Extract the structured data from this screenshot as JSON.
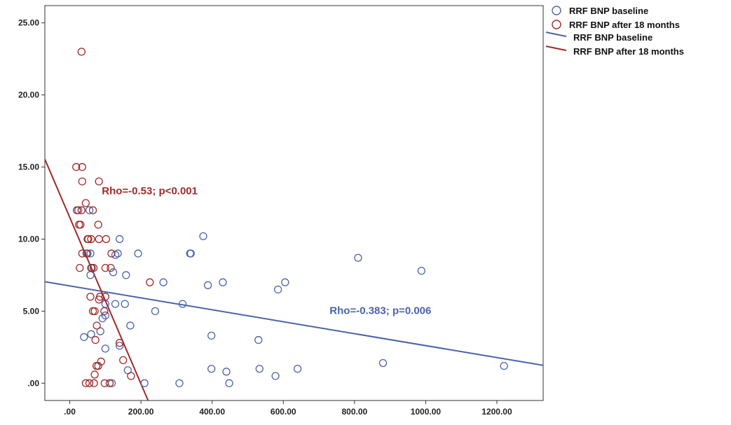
{
  "chart_data": {
    "type": "scatter",
    "title": "",
    "xlabel": "",
    "ylabel": "",
    "xlim": [
      -70,
      1330
    ],
    "ylim": [
      -1.2,
      26.2
    ],
    "x_ticks": [
      0,
      200,
      400,
      600,
      800,
      1000,
      1200
    ],
    "x_tick_labels": [
      ".00",
      "200.00",
      "400.00",
      "600.00",
      "800.00",
      "1000.00",
      "1200.00"
    ],
    "y_ticks": [
      0,
      5,
      10,
      15,
      20,
      25
    ],
    "y_tick_labels": [
      ".00",
      "5.00",
      "10.00",
      "15.00",
      "20.00",
      "25.00"
    ],
    "grid": false,
    "legend_position": "right",
    "legend": [
      {
        "label": "RRF BNP baseline",
        "marker": "circle",
        "color": "#4a64a8"
      },
      {
        "label": "RRF BNP after 18 months",
        "marker": "circle",
        "color": "#a02a2a"
      },
      {
        "label": "RRF BNP baseline",
        "marker": "line",
        "color": "#4a64a8"
      },
      {
        "label": "RRF BNP after 18 months",
        "marker": "line",
        "color": "#a02a2a"
      }
    ],
    "series": [
      {
        "name": "RRF BNP baseline",
        "color": "#4a64a8",
        "points": [
          [
            24,
            12
          ],
          [
            55,
            12
          ],
          [
            50,
            9
          ],
          [
            58,
            9
          ],
          [
            62,
            8
          ],
          [
            40,
            3.2
          ],
          [
            60,
            3.4
          ],
          [
            58,
            7.5
          ],
          [
            92,
            4.5
          ],
          [
            86,
            3.6
          ],
          [
            100,
            4.7
          ],
          [
            100,
            2.4
          ],
          [
            100,
            5.5
          ],
          [
            122,
            7.7
          ],
          [
            128,
            8.9
          ],
          [
            128,
            5.5
          ],
          [
            135,
            9
          ],
          [
            140,
            10
          ],
          [
            155,
            5.5
          ],
          [
            158,
            7.5
          ],
          [
            170,
            4
          ],
          [
            163,
            0.9
          ],
          [
            118,
            0
          ],
          [
            140,
            2.6
          ],
          [
            192,
            9
          ],
          [
            210,
            0
          ],
          [
            240,
            5
          ],
          [
            263,
            7
          ],
          [
            317,
            5.5
          ],
          [
            308,
            0
          ],
          [
            338,
            9
          ],
          [
            340,
            9
          ],
          [
            375,
            10.2
          ],
          [
            388,
            6.8
          ],
          [
            398,
            3.3
          ],
          [
            398,
            1
          ],
          [
            430,
            7
          ],
          [
            440,
            0.8
          ],
          [
            448,
            0
          ],
          [
            530,
            3
          ],
          [
            533,
            1
          ],
          [
            578,
            0.5
          ],
          [
            585,
            6.5
          ],
          [
            605,
            7
          ],
          [
            640,
            1
          ],
          [
            810,
            8.7
          ],
          [
            880,
            1.4
          ],
          [
            988,
            7.8
          ],
          [
            1220,
            1.2
          ]
        ]
      },
      {
        "name": "RRF BNP after 18 months",
        "color": "#a02a2a",
        "points": [
          [
            33,
            23
          ],
          [
            18,
            15
          ],
          [
            35,
            15
          ],
          [
            35,
            14
          ],
          [
            82,
            14
          ],
          [
            45,
            12.5
          ],
          [
            20,
            12
          ],
          [
            33,
            12
          ],
          [
            65,
            12
          ],
          [
            26,
            11
          ],
          [
            30,
            11
          ],
          [
            80,
            11
          ],
          [
            50,
            10
          ],
          [
            52,
            10
          ],
          [
            60,
            10
          ],
          [
            82,
            10
          ],
          [
            102,
            10
          ],
          [
            35,
            9
          ],
          [
            47,
            9
          ],
          [
            117,
            9
          ],
          [
            28,
            8
          ],
          [
            60,
            8
          ],
          [
            67,
            8
          ],
          [
            100,
            8
          ],
          [
            115,
            8
          ],
          [
            225,
            7
          ],
          [
            58,
            6
          ],
          [
            85,
            6
          ],
          [
            100,
            6
          ],
          [
            82,
            5.8
          ],
          [
            65,
            5
          ],
          [
            70,
            5
          ],
          [
            97,
            5
          ],
          [
            76,
            4
          ],
          [
            72,
            3
          ],
          [
            140,
            2.8
          ],
          [
            88,
            1.5
          ],
          [
            150,
            1.6
          ],
          [
            75,
            1.2
          ],
          [
            80,
            1.2
          ],
          [
            172,
            0.5
          ],
          [
            70,
            0.6
          ],
          [
            45,
            0
          ],
          [
            55,
            0
          ],
          [
            68,
            0
          ],
          [
            98,
            0
          ],
          [
            112,
            0
          ]
        ]
      }
    ],
    "fit_lines": [
      {
        "name": "RRF BNP baseline",
        "color": "#4a64a8",
        "x": [
          -70,
          1330
        ],
        "y": [
          7.04,
          1.24
        ]
      },
      {
        "name": "RRF BNP after 18 months",
        "color": "#a02a2a",
        "x": [
          -70,
          220
        ],
        "y": [
          15.54,
          -1.2
        ]
      }
    ],
    "annotations": [
      {
        "text": "Rho=-0.53; p<0.001",
        "x": 90,
        "y": 13.1,
        "color": "#a02a2a"
      },
      {
        "text": "Rho=-0.383; p=0.006",
        "x": 730,
        "y": 4.8,
        "color": "#4a64a8"
      }
    ]
  }
}
